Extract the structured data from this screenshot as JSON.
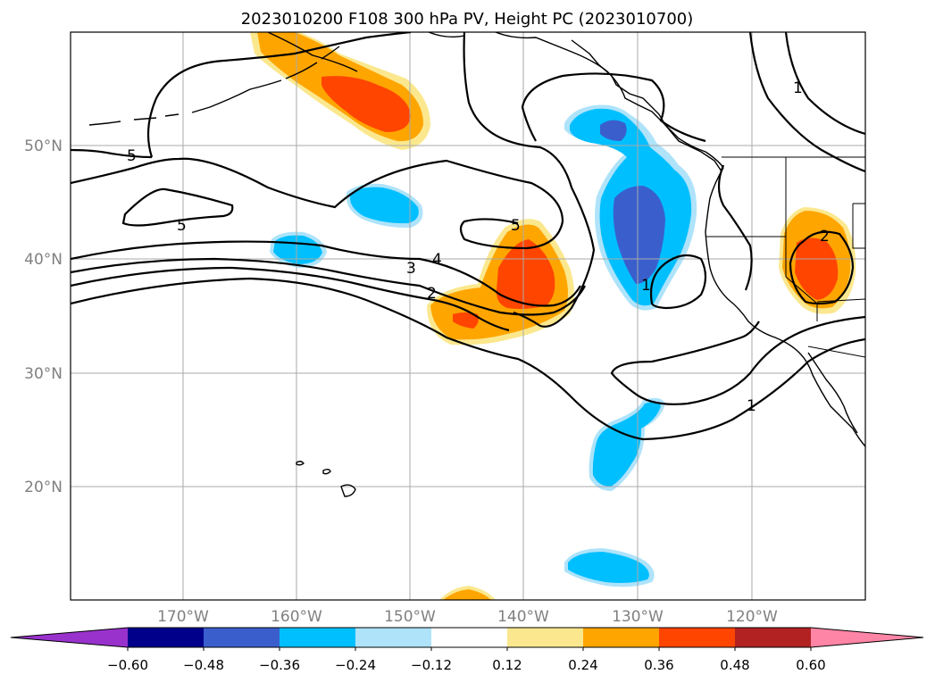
{
  "title": "2023010200 F108 300 hPa PV, Height PC (2023010700)",
  "map": {
    "lat_labels": [
      "50°N",
      "40°N",
      "30°N",
      "20°N"
    ],
    "lon_labels": [
      "170°W",
      "160°W",
      "150°W",
      "140°W",
      "130°W",
      "120°W"
    ],
    "contour_labels": [
      "5",
      "5",
      "5",
      "4",
      "3",
      "2",
      "1",
      "1",
      "1",
      "2"
    ]
  },
  "colorbar": {
    "colors": [
      "#9932cc",
      "#00008b",
      "#3a5fcd",
      "#00bfff",
      "#aee3fa",
      "#ffffff",
      "#fbe88e",
      "#ffa500",
      "#ff4500",
      "#b22222",
      "#ff85a6"
    ],
    "tick_labels": [
      "-0.60",
      "-0.48",
      "-0.36",
      "-0.24",
      "-0.12",
      "0.12",
      "0.24",
      "0.36",
      "0.48",
      "0.60"
    ]
  }
}
